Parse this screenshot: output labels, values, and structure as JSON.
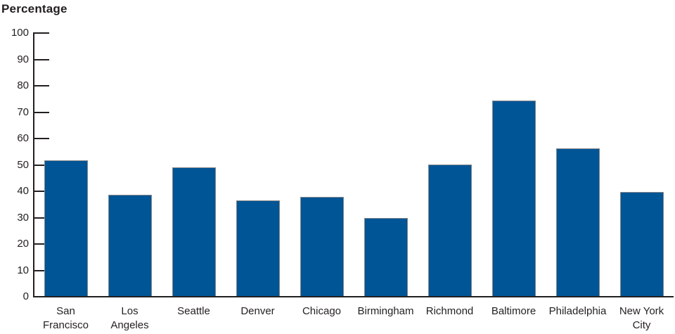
{
  "title": "Percentage",
  "chart_data": {
    "type": "bar",
    "title": "",
    "ylabel": "Percentage",
    "xlabel": "",
    "categories": [
      "San Francisco",
      "Los Angeles",
      "Seattle",
      "Denver",
      "Chicago",
      "Birmingham",
      "Richmond",
      "Baltimore",
      "Philadelphia",
      "New York City"
    ],
    "category_label_lines": [
      [
        "San",
        "Francisco"
      ],
      [
        "Los",
        "Angeles"
      ],
      [
        "Seattle"
      ],
      [
        "Denver"
      ],
      [
        "Chicago"
      ],
      [
        "Birmingham"
      ],
      [
        "Richmond"
      ],
      [
        "Baltimore"
      ],
      [
        "Philadelphia"
      ],
      [
        "New York",
        "City"
      ]
    ],
    "values": [
      51.8,
      38.8,
      49.2,
      36.5,
      37.8,
      30,
      50.1,
      74.3,
      56.2,
      39.8
    ],
    "y_ticks": [
      0,
      10,
      20,
      30,
      40,
      50,
      60,
      70,
      80,
      90,
      100
    ],
    "ylim": [
      0,
      100
    ],
    "grid": false,
    "legend": false,
    "bar_color": "#005596",
    "bar_border_color": "#85878a",
    "axis_color": "#231f20",
    "text_color": "#231f20"
  }
}
